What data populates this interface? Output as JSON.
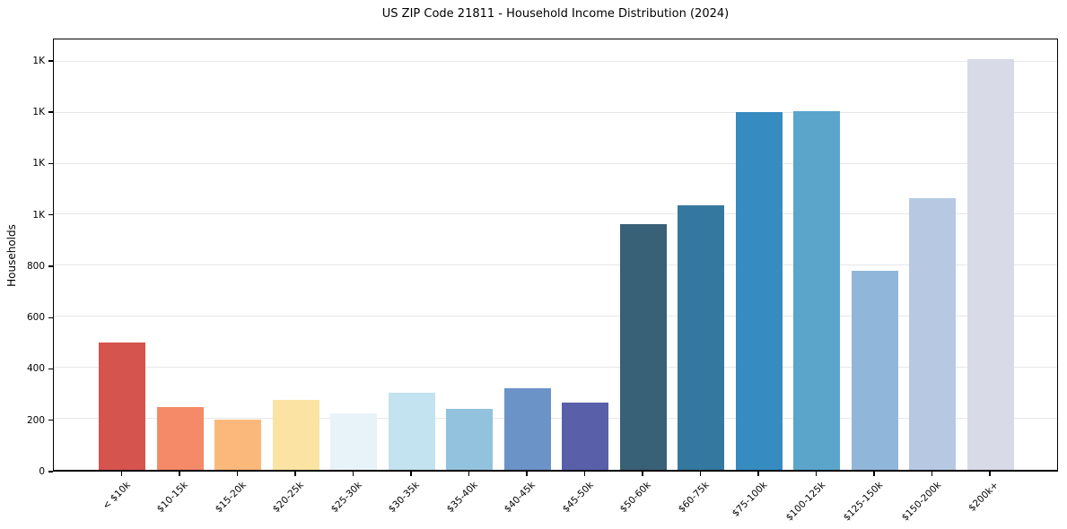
{
  "title": "US ZIP Code 21811 - Household Income Distribution (2024)",
  "chart_data": {
    "type": "bar",
    "title": "US ZIP Code 21811 - Household Income Distribution (2024)",
    "xlabel": "",
    "ylabel": "Households",
    "categories": [
      "< $10k",
      "$10-15k",
      "$15-20k",
      "$20-25k",
      "$25-30k",
      "$30-35k",
      "$35-40k",
      "$40-45k",
      "$45-50k",
      "$50-60k",
      "$60-75k",
      "$75-100k",
      "$100-125k",
      "$125-150k",
      "$150-200k",
      "$200k+"
    ],
    "values": [
      497,
      245,
      197,
      273,
      220,
      300,
      237,
      319,
      261,
      956,
      1030,
      1393,
      1398,
      775,
      1058,
      1598
    ],
    "bar_colors": [
      "#d5544e",
      "#f48a68",
      "#fab97a",
      "#fbe3a4",
      "#e7f3f9",
      "#c2e3ef",
      "#92c2de",
      "#6b93c7",
      "#5a5fa9",
      "#386076",
      "#35789f",
      "#368bc1",
      "#5ba5cb",
      "#90b7da",
      "#b7c9e2",
      "#d8dae8"
    ],
    "ylim": [
      0,
      1687
    ],
    "yticks": [
      {
        "value": 0,
        "label": "0"
      },
      {
        "value": 200,
        "label": "200"
      },
      {
        "value": 400,
        "label": "400"
      },
      {
        "value": 600,
        "label": "600"
      },
      {
        "value": 800,
        "label": "800"
      },
      {
        "value": 1000,
        "label": "1K"
      },
      {
        "value": 1200,
        "label": "1K"
      },
      {
        "value": 1400,
        "label": "1K"
      },
      {
        "value": 1600,
        "label": "1K"
      }
    ],
    "grid": "horizontal",
    "gridline_color": "#e7e7e7",
    "axis_color": "#000000",
    "background": "#ffffff",
    "legend_position": "none"
  }
}
